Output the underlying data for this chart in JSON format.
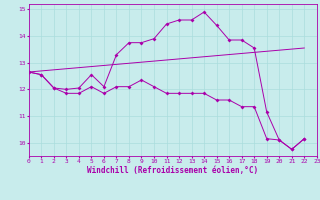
{
  "xlabel": "Windchill (Refroidissement éolien,°C)",
  "xlim": [
    0,
    23
  ],
  "ylim": [
    9.5,
    15.2
  ],
  "yticks": [
    10,
    11,
    12,
    13,
    14,
    15
  ],
  "xticks": [
    0,
    1,
    2,
    3,
    4,
    5,
    6,
    7,
    8,
    9,
    10,
    11,
    12,
    13,
    14,
    15,
    16,
    17,
    18,
    19,
    20,
    21,
    22,
    23
  ],
  "background_color": "#c8ecec",
  "grid_color": "#aadddd",
  "line_color": "#aa00aa",
  "line1_x": [
    0,
    1,
    2,
    3,
    4,
    5,
    6,
    7,
    8,
    9,
    10,
    11,
    12,
    13,
    14,
    15,
    16,
    17,
    18,
    19,
    20,
    21,
    22
  ],
  "line1_y": [
    12.65,
    12.55,
    12.05,
    12.0,
    12.05,
    12.55,
    12.1,
    13.3,
    13.75,
    13.75,
    13.9,
    14.45,
    14.6,
    14.6,
    14.9,
    14.4,
    13.85,
    13.85,
    13.55,
    11.15,
    10.1,
    9.75,
    10.15
  ],
  "line2_x": [
    0,
    1,
    2,
    3,
    4,
    5,
    6,
    7,
    8,
    9,
    10,
    11,
    12,
    13,
    14,
    15,
    16,
    17,
    18,
    19,
    20,
    21,
    22
  ],
  "line2_y": [
    12.65,
    12.55,
    12.05,
    11.85,
    11.85,
    12.1,
    11.85,
    12.1,
    12.1,
    12.35,
    12.1,
    11.85,
    11.85,
    11.85,
    11.85,
    11.6,
    11.6,
    11.35,
    11.35,
    10.15,
    10.1,
    9.75,
    10.15
  ],
  "line3_x": [
    0,
    22
  ],
  "line3_y": [
    12.65,
    13.55
  ],
  "figsize": [
    3.2,
    2.0
  ],
  "dpi": 100
}
